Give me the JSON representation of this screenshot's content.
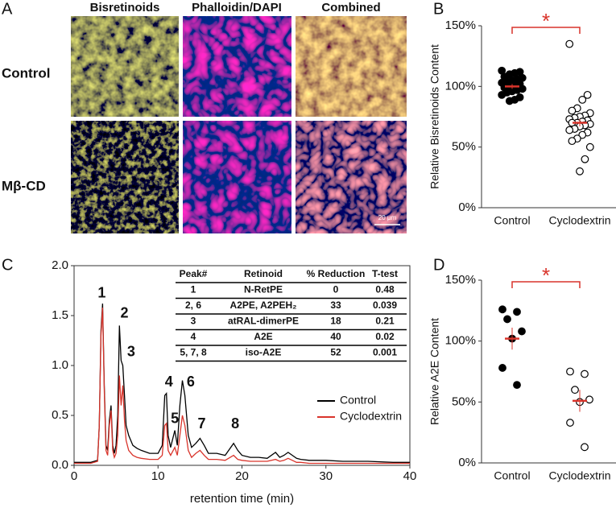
{
  "figure": {
    "panel_labels": [
      "A",
      "B",
      "C",
      "D"
    ]
  },
  "micrograph": {
    "columns": [
      "Bisretinoids",
      "Phalloidin/DAPI",
      "Combined"
    ],
    "rows": [
      "Control",
      "Mβ-CD"
    ],
    "scale_bar": "20 µm"
  },
  "chart_data": [
    {
      "type": "strip",
      "ylabel": "Relative Bisretinoids Content",
      "categories": [
        "Control",
        "Cyclodextrin"
      ],
      "ylim": [
        0,
        150
      ],
      "yticks": [
        {
          "value": 0,
          "label": "0%"
        },
        {
          "value": 50,
          "label": "50%"
        },
        {
          "value": 100,
          "label": "100%"
        },
        {
          "value": 150,
          "label": "150%"
        }
      ],
      "significance": "*",
      "mean_color": "#d9342b",
      "groups": [
        {
          "color": "#000000",
          "filled": true,
          "mean": 100,
          "error": 2,
          "values": [
            113,
            112,
            111,
            110,
            108,
            107,
            106,
            105,
            104,
            103,
            102,
            101,
            100,
            99,
            98,
            97,
            96,
            95,
            93,
            91,
            89,
            88
          ]
        },
        {
          "color": "#000000",
          "filled": false,
          "mean": 70,
          "error": 3,
          "values": [
            135,
            93,
            89,
            82,
            80,
            78,
            76,
            75,
            74,
            73,
            72,
            71,
            70,
            70,
            69,
            68,
            67,
            65,
            64,
            62,
            60,
            57,
            55,
            50,
            40,
            30
          ]
        }
      ]
    },
    {
      "type": "line",
      "xlabel": "retention time (min)",
      "xlim": [
        0,
        40
      ],
      "xticks": [
        0,
        10,
        20,
        30,
        40
      ],
      "ylim": [
        0,
        2
      ],
      "yticks": [
        {
          "value": 0,
          "label": "0.0"
        },
        0.5,
        {
          "value": 1,
          "label": "1.0"
        },
        1.5,
        {
          "value": 2,
          "label": "2.0"
        }
      ],
      "legend": "lower right",
      "x": [
        0,
        1,
        2,
        2.8,
        3.0,
        3.2,
        3.4,
        3.6,
        3.8,
        4.0,
        4.2,
        4.4,
        4.6,
        4.8,
        5.0,
        5.2,
        5.4,
        5.6,
        5.8,
        6.0,
        6.2,
        6.5,
        7,
        7.5,
        8,
        9,
        10,
        10.5,
        10.8,
        11,
        11.2,
        11.5,
        12,
        12.3,
        12.6,
        12.9,
        13.2,
        13.6,
        14,
        14.5,
        15,
        15.5,
        16,
        17,
        18,
        19,
        19.5,
        20,
        21,
        22,
        23,
        24,
        24.5,
        25,
        25.5,
        26,
        26.5,
        27,
        28,
        30,
        32,
        35,
        38,
        40
      ],
      "series": [
        {
          "name": "Control",
          "color": "#000000",
          "values": [
            0.03,
            0.03,
            0.03,
            0.05,
            0.4,
            1.35,
            1.62,
            0.8,
            0.2,
            0.15,
            0.45,
            0.6,
            0.2,
            0.12,
            0.2,
            0.5,
            1.4,
            1.05,
            1.0,
            0.7,
            0.4,
            0.3,
            0.2,
            0.17,
            0.15,
            0.12,
            0.12,
            0.2,
            0.7,
            0.72,
            0.3,
            0.18,
            0.35,
            0.2,
            0.6,
            0.85,
            0.7,
            0.3,
            0.18,
            0.22,
            0.27,
            0.2,
            0.12,
            0.12,
            0.1,
            0.22,
            0.15,
            0.1,
            0.08,
            0.08,
            0.07,
            0.13,
            0.08,
            0.1,
            0.13,
            0.1,
            0.07,
            0.06,
            0.05,
            0.05,
            0.04,
            0.04,
            0.03,
            0.03
          ]
        },
        {
          "name": "Cyclodextrin",
          "color": "#d9342b",
          "values": [
            0.02,
            0.02,
            0.02,
            0.04,
            0.4,
            1.3,
            1.58,
            0.75,
            0.15,
            0.1,
            0.4,
            0.55,
            0.15,
            0.08,
            0.12,
            0.3,
            0.9,
            0.6,
            0.8,
            0.45,
            0.25,
            0.15,
            0.1,
            0.08,
            0.07,
            0.06,
            0.06,
            0.1,
            0.4,
            0.42,
            0.15,
            0.1,
            0.18,
            0.1,
            0.3,
            0.5,
            0.4,
            0.15,
            0.08,
            0.12,
            0.15,
            0.1,
            0.06,
            0.06,
            0.05,
            0.1,
            0.06,
            0.05,
            0.04,
            0.04,
            0.04,
            0.06,
            0.04,
            0.05,
            0.07,
            0.05,
            0.03,
            0.03,
            0.02,
            0.02,
            0.02,
            0.02,
            0.02,
            0.02
          ]
        }
      ],
      "annotations": [
        {
          "text": "1",
          "x": 3.3,
          "y": 1.72
        },
        {
          "text": "2",
          "x": 6.0,
          "y": 1.52
        },
        {
          "text": "3",
          "x": 6.8,
          "y": 1.13
        },
        {
          "text": "4",
          "x": 11.3,
          "y": 0.83
        },
        {
          "text": "5",
          "x": 12.0,
          "y": 0.46
        },
        {
          "text": "6",
          "x": 13.9,
          "y": 0.83
        },
        {
          "text": "7",
          "x": 15.2,
          "y": 0.41
        },
        {
          "text": "8",
          "x": 19.2,
          "y": 0.41
        }
      ],
      "table": {
        "header": [
          "Peak#",
          "Retinoid",
          "% Reduction",
          "T-test"
        ],
        "rows": [
          [
            "1",
            "N-RetPE",
            0,
            0.48
          ],
          [
            "2, 6",
            "A2PE, A2PEH₂",
            33,
            0.039
          ],
          [
            "3",
            "atRAL-dimerPE",
            18,
            0.21
          ],
          [
            "4",
            "A2E",
            40,
            0.02
          ],
          [
            "5, 7, 8",
            "iso-A2E",
            52,
            0.001
          ]
        ]
      }
    },
    {
      "type": "strip",
      "ylabel": "Relative A2E Content",
      "categories": [
        "Control",
        "Cyclodextrin"
      ],
      "ylim": [
        0,
        150
      ],
      "yticks": [
        {
          "value": 0,
          "label": "0%"
        },
        {
          "value": 50,
          "label": "50%"
        },
        {
          "value": 100,
          "label": "100%"
        },
        {
          "value": 150,
          "label": "150%"
        }
      ],
      "significance": "*",
      "mean_color": "#d9342b",
      "groups": [
        {
          "color": "#000000",
          "filled": true,
          "mean": 102,
          "error": 9,
          "values": [
            126,
            124,
            118,
            108,
            102,
            78,
            64
          ]
        },
        {
          "color": "#000000",
          "filled": false,
          "mean": 51,
          "error": 9,
          "values": [
            75,
            73,
            60,
            52,
            50,
            33,
            13
          ]
        }
      ]
    }
  ]
}
